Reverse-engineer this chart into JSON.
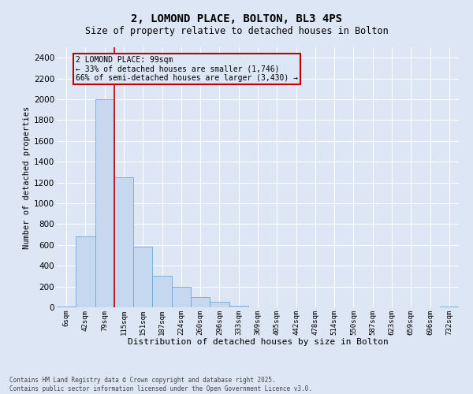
{
  "title_line1": "2, LOMOND PLACE, BOLTON, BL3 4PS",
  "title_line2": "Size of property relative to detached houses in Bolton",
  "xlabel": "Distribution of detached houses by size in Bolton",
  "ylabel": "Number of detached properties",
  "categories": [
    "6sqm",
    "42sqm",
    "79sqm",
    "115sqm",
    "151sqm",
    "187sqm",
    "224sqm",
    "260sqm",
    "296sqm",
    "333sqm",
    "369sqm",
    "405sqm",
    "442sqm",
    "478sqm",
    "514sqm",
    "550sqm",
    "587sqm",
    "623sqm",
    "659sqm",
    "696sqm",
    "732sqm"
  ],
  "values": [
    5,
    680,
    2000,
    1250,
    580,
    300,
    200,
    100,
    50,
    15,
    0,
    0,
    0,
    0,
    0,
    0,
    0,
    0,
    0,
    0,
    5
  ],
  "bar_color": "#c5d8ef",
  "bar_edge_color": "#6aaad4",
  "background_color": "#dce6f5",
  "grid_color": "#ffffff",
  "vline_x": 2.5,
  "vline_color": "#c00000",
  "annotation_text": "2 LOMOND PLACE: 99sqm\n← 33% of detached houses are smaller (1,746)\n66% of semi-detached houses are larger (3,430) →",
  "annotation_box_color": "#c00000",
  "ylim": [
    0,
    2500
  ],
  "yticks": [
    0,
    200,
    400,
    600,
    800,
    1000,
    1200,
    1400,
    1600,
    1800,
    2000,
    2200,
    2400
  ],
  "footer_text": "Contains HM Land Registry data © Crown copyright and database right 2025.\nContains public sector information licensed under the Open Government Licence v3.0.",
  "fig_width": 6.0,
  "fig_height": 5.0,
  "dpi": 100
}
